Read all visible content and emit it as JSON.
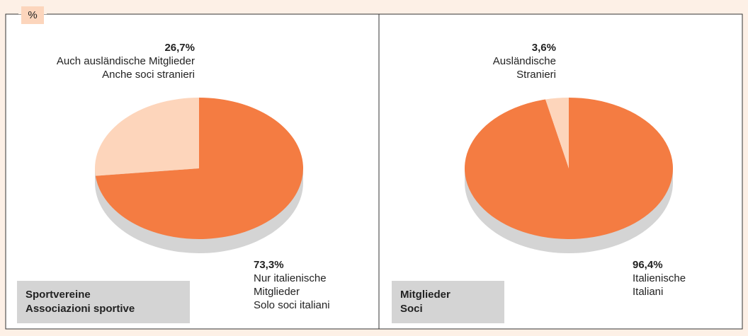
{
  "unit_label": "%",
  "chart_data": [
    {
      "type": "pie",
      "title": [
        "Sportvereine",
        "Associazioni sportive"
      ],
      "categories": [
        [
          "Auch ausländische Mitglieder",
          "Anche soci stranieri"
        ],
        [
          "Nur italienische",
          "Mitglieder",
          "Solo soci italiani"
        ]
      ],
      "values": [
        26.7,
        73.3
      ],
      "value_labels": [
        "26,7%",
        "73,3%"
      ],
      "colors": [
        "#fdd5bb",
        "#f47c42"
      ]
    },
    {
      "type": "pie",
      "title": [
        "Mitglieder",
        "Soci"
      ],
      "categories": [
        [
          "Ausländische",
          "Stranieri"
        ],
        [
          "Italienische",
          "Italiani"
        ]
      ],
      "values": [
        3.6,
        96.4
      ],
      "value_labels": [
        "3,6%",
        "96,4%"
      ],
      "colors": [
        "#fdd5bb",
        "#f47c42"
      ]
    }
  ]
}
